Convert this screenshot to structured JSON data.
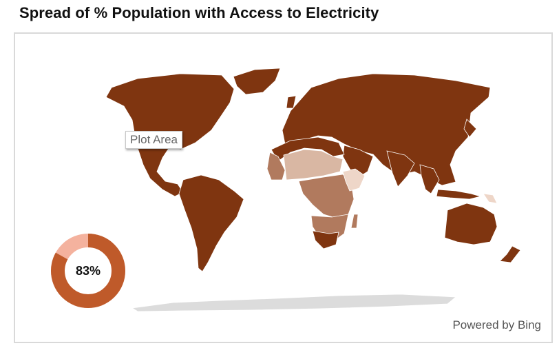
{
  "title": "Spread of % Population with Access to Electricity",
  "tooltip": "Plot Area",
  "attribution": "Powered by Bing",
  "colors": {
    "high": "#7f3510",
    "mid": "#b17a5e",
    "low": "#d9b7a3",
    "lowest": "#eed6c8",
    "antarctica": "#dcdcdc",
    "donut_fill": "#bf5a2a",
    "donut_rest": "#f4b29e"
  },
  "chart_data": {
    "type": "filled-map",
    "title": "Spread of % Population with Access to Electricity",
    "summary": {
      "value_percent": 83,
      "label": "83%"
    }
  }
}
